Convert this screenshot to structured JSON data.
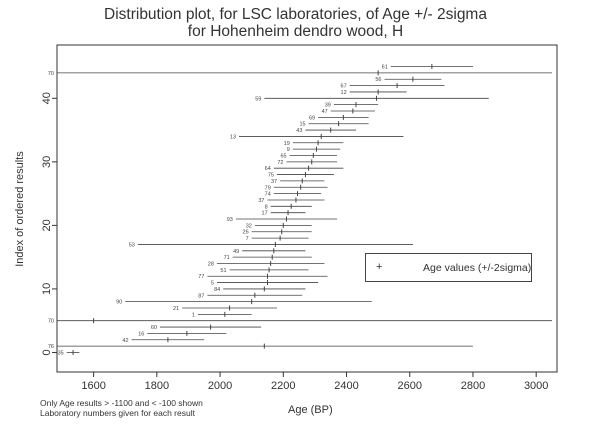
{
  "chart_data": {
    "type": "scatter",
    "title": "Distribution plot, for LSC laboratories, of Age +/- 2sigma",
    "subtitle": "for Hohenheim dendro wood, H",
    "xlabel": "Age (BP)",
    "ylabel": "Index of ordered results",
    "xlim": [
      1500,
      3050
    ],
    "ylim": [
      -1.5,
      46.5
    ],
    "xticks": [
      1600,
      1800,
      2000,
      2200,
      2400,
      2600,
      2800,
      3000
    ],
    "yticks": [
      0,
      10,
      20,
      30,
      40
    ],
    "legend": {
      "label": "Age values (+/-2sigma)",
      "marker": "+",
      "position": "right"
    },
    "notes": [
      "Only Age results > -1100 and < -100 shown",
      "Laboratory numbers given for each result"
    ],
    "results": [
      {
        "index": 0,
        "lab": "35",
        "age": 1535,
        "lo": 1515,
        "hi": 1555
      },
      {
        "index": 1,
        "lab": "76",
        "age": 2140,
        "lo": 1480,
        "hi": 2800
      },
      {
        "index": 2,
        "lab": "42",
        "age": 1835,
        "lo": 1720,
        "hi": 1950
      },
      {
        "index": 3,
        "lab": "16",
        "age": 1895,
        "lo": 1770,
        "hi": 2020
      },
      {
        "index": 4,
        "lab": "60",
        "age": 1970,
        "lo": 1810,
        "hi": 2130
      },
      {
        "index": 5,
        "lab": "70",
        "age": 1600,
        "lo": 1480,
        "hi": 3050
      },
      {
        "index": 6,
        "lab": "1",
        "age": 2015,
        "lo": 1930,
        "hi": 2100
      },
      {
        "index": 7,
        "lab": "21",
        "age": 2030,
        "lo": 1880,
        "hi": 2180
      },
      {
        "index": 8,
        "lab": "90",
        "age": 2100,
        "lo": 1700,
        "hi": 2480
      },
      {
        "index": 9,
        "lab": "87",
        "age": 2110,
        "lo": 1960,
        "hi": 2260
      },
      {
        "index": 10,
        "lab": "84",
        "age": 2140,
        "lo": 2010,
        "hi": 2270
      },
      {
        "index": 11,
        "lab": "5",
        "age": 2150,
        "lo": 1990,
        "hi": 2310
      },
      {
        "index": 12,
        "lab": "77",
        "age": 2150,
        "lo": 1960,
        "hi": 2340
      },
      {
        "index": 13,
        "lab": "51",
        "age": 2155,
        "lo": 2030,
        "hi": 2280
      },
      {
        "index": 14,
        "lab": "28",
        "age": 2160,
        "lo": 1990,
        "hi": 2330
      },
      {
        "index": 15,
        "lab": "71",
        "age": 2165,
        "lo": 2040,
        "hi": 2290
      },
      {
        "index": 16,
        "lab": "49",
        "age": 2170,
        "lo": 2070,
        "hi": 2270
      },
      {
        "index": 17,
        "lab": "53",
        "age": 2175,
        "lo": 1740,
        "hi": 2610
      },
      {
        "index": 18,
        "lab": "7",
        "age": 2190,
        "lo": 2100,
        "hi": 2280
      },
      {
        "index": 19,
        "lab": "26",
        "age": 2195,
        "lo": 2100,
        "hi": 2290
      },
      {
        "index": 20,
        "lab": "32",
        "age": 2200,
        "lo": 2110,
        "hi": 2290
      },
      {
        "index": 21,
        "lab": "93",
        "age": 2210,
        "lo": 2050,
        "hi": 2370
      },
      {
        "index": 22,
        "lab": "17",
        "age": 2215,
        "lo": 2160,
        "hi": 2270
      },
      {
        "index": 23,
        "lab": "8",
        "age": 2225,
        "lo": 2160,
        "hi": 2290
      },
      {
        "index": 24,
        "lab": "37",
        "age": 2240,
        "lo": 2150,
        "hi": 2330
      },
      {
        "index": 25,
        "lab": "74",
        "age": 2245,
        "lo": 2170,
        "hi": 2320
      },
      {
        "index": 26,
        "lab": "79",
        "age": 2255,
        "lo": 2170,
        "hi": 2340
      },
      {
        "index": 27,
        "lab": "37",
        "age": 2260,
        "lo": 2190,
        "hi": 2330
      },
      {
        "index": 28,
        "lab": "75",
        "age": 2270,
        "lo": 2180,
        "hi": 2360
      },
      {
        "index": 29,
        "lab": "64",
        "age": 2280,
        "lo": 2170,
        "hi": 2390
      },
      {
        "index": 30,
        "lab": "72",
        "age": 2290,
        "lo": 2210,
        "hi": 2370
      },
      {
        "index": 31,
        "lab": "65",
        "age": 2295,
        "lo": 2220,
        "hi": 2370
      },
      {
        "index": 32,
        "lab": "9",
        "age": 2305,
        "lo": 2230,
        "hi": 2380
      },
      {
        "index": 33,
        "lab": "19",
        "age": 2310,
        "lo": 2230,
        "hi": 2390
      },
      {
        "index": 34,
        "lab": "13",
        "age": 2320,
        "lo": 2060,
        "hi": 2580
      },
      {
        "index": 35,
        "lab": "43",
        "age": 2350,
        "lo": 2270,
        "hi": 2430
      },
      {
        "index": 36,
        "lab": "15",
        "age": 2375,
        "lo": 2280,
        "hi": 2470
      },
      {
        "index": 37,
        "lab": "69",
        "age": 2390,
        "lo": 2310,
        "hi": 2470
      },
      {
        "index": 38,
        "lab": "47",
        "age": 2420,
        "lo": 2350,
        "hi": 2490
      },
      {
        "index": 39,
        "lab": "39",
        "age": 2430,
        "lo": 2360,
        "hi": 2500
      },
      {
        "index": 40,
        "lab": "59",
        "age": 2495,
        "lo": 2140,
        "hi": 2850
      },
      {
        "index": 41,
        "lab": "12",
        "age": 2500,
        "lo": 2410,
        "hi": 2590
      },
      {
        "index": 42,
        "lab": "67",
        "age": 2560,
        "lo": 2410,
        "hi": 2710
      },
      {
        "index": 43,
        "lab": "56",
        "age": 2610,
        "lo": 2520,
        "hi": 2700
      },
      {
        "index": 44,
        "lab": "70",
        "age": 2500,
        "lo": 1480,
        "hi": 3050
      },
      {
        "index": 45,
        "lab": "61",
        "age": 2670,
        "lo": 2540,
        "hi": 2800
      }
    ]
  }
}
